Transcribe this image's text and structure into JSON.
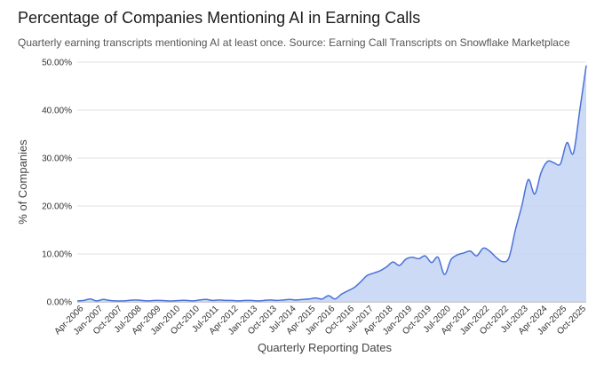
{
  "chart_data": {
    "type": "area",
    "title": "Percentage of Companies Mentioning AI in Earning Calls",
    "subtitle": "Quarterly earning transcripts mentioning AI at least once. Source: Earning Call Transcripts on Snowflake Marketplace",
    "xlabel": "Quarterly Reporting Dates",
    "ylabel": "% of Companies",
    "ylim": [
      0,
      50
    ],
    "yticks": [
      0,
      10,
      20,
      30,
      40,
      50
    ],
    "ytick_labels": [
      "0.00%",
      "10.00%",
      "20.00%",
      "30.00%",
      "40.00%",
      "50.00%"
    ],
    "grid": true,
    "legend": "none",
    "x_start_quarter": "Jan-2006",
    "xtick_labels": [
      "Apr-2006",
      "Jan-2007",
      "Oct-2007",
      "Jul-2008",
      "Apr-2009",
      "Jan-2010",
      "Oct-2010",
      "Jul-2011",
      "Apr-2012",
      "Jan-2013",
      "Oct-2013",
      "Jul-2014",
      "Apr-2015",
      "Jan-2016",
      "Oct-2016",
      "Jul-2017",
      "Apr-2018",
      "Jan-2019",
      "Oct-2019",
      "Jul-2020",
      "Apr-2021",
      "Jan-2022",
      "Oct-2022",
      "Jul-2023",
      "Apr-2024",
      "Jan-2025",
      "Oct-2025"
    ],
    "xtick_indices": [
      1,
      4,
      7,
      10,
      13,
      16,
      19,
      22,
      25,
      28,
      31,
      34,
      37,
      40,
      43,
      46,
      49,
      52,
      55,
      58,
      61,
      64,
      67,
      70,
      73,
      76,
      79
    ],
    "series": [
      {
        "name": "% of Companies",
        "color": "#4a72d8",
        "fill": "#c6d6f5",
        "values": [
          0.2,
          0.3,
          0.6,
          0.2,
          0.5,
          0.3,
          0.2,
          0.2,
          0.3,
          0.4,
          0.3,
          0.2,
          0.3,
          0.3,
          0.2,
          0.2,
          0.3,
          0.3,
          0.2,
          0.4,
          0.5,
          0.3,
          0.4,
          0.3,
          0.3,
          0.2,
          0.3,
          0.3,
          0.2,
          0.3,
          0.4,
          0.3,
          0.4,
          0.5,
          0.4,
          0.5,
          0.6,
          0.8,
          0.6,
          1.3,
          0.6,
          1.6,
          2.3,
          3.0,
          4.2,
          5.5,
          6.0,
          6.5,
          7.3,
          8.3,
          7.6,
          8.9,
          9.3,
          9.0,
          9.6,
          8.2,
          9.3,
          5.7,
          8.8,
          9.8,
          10.2,
          10.6,
          9.6,
          11.2,
          10.6,
          9.3,
          8.4,
          9.2,
          15.0,
          20.0,
          25.5,
          22.5,
          27.0,
          29.3,
          29.0,
          28.8,
          33.2,
          31.0,
          40.0,
          49.3
        ]
      }
    ]
  }
}
